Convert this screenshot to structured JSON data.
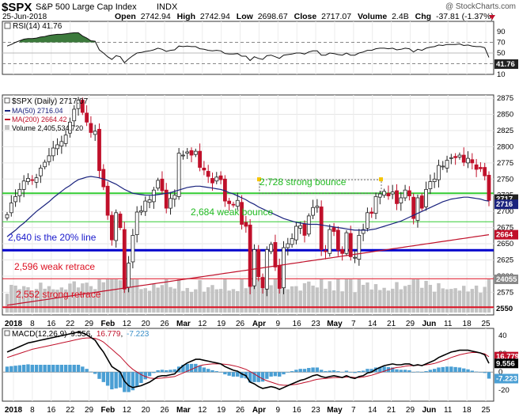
{
  "header": {
    "symbol": "$SPX",
    "name": "S&P 500 Large Cap Index",
    "exchange": "INDX",
    "watermark": "@ StockCharts.com",
    "date": "25-Jun-2018",
    "open_label": "Open",
    "open": "2742.94",
    "high_label": "High",
    "high": "2742.94",
    "low_label": "Low",
    "low": "2698.67",
    "close_label": "Close",
    "close": "2717.07",
    "volume_label": "Volume",
    "volume": "2.4B",
    "chg_label": "Chg",
    "chg": "-37.81 (-1.37%)"
  },
  "colors": {
    "up": "#222222",
    "down": "#c0102a",
    "ma50": "#1a237e",
    "ma200": "#c0102a",
    "volume": "#c3c3c3",
    "green_line": "#33cc33",
    "blue_line": "#0000cc",
    "red_line": "#dd1122",
    "panel_bg": "#f4f4f4"
  },
  "rsi_panel": {
    "legend": "RSI(14) 41.76",
    "ticks": [
      "90",
      "70",
      "50",
      "30",
      "10"
    ],
    "value_badge": "41.76"
  },
  "price_panel": {
    "legend_title": "$SPX (Daily) 2717.07",
    "legend_ma50": "MA(50) 2716.04",
    "legend_ma200": "MA(200) 2664.42",
    "legend_volume": "Volume 2,405,534,720",
    "ticks": [
      "2875",
      "2850",
      "2825",
      "2800",
      "2775",
      "2750",
      "2725",
      "2700",
      "2675",
      "2650",
      "2625",
      "2600",
      "2575",
      "2550"
    ],
    "badges": [
      "2717",
      "2716",
      "2664",
      "24055",
      "2550"
    ],
    "annotations": [
      "2,728 strong bounce",
      "2,684 weak bounce",
      "2,640 is the 20% line",
      "2,596 weak retrace",
      "2,552 strong retrace"
    ]
  },
  "macd_panel": {
    "legend_name": "MACD(12,26,9)",
    "legend_macd": "9.556",
    "legend_signal": "16.779",
    "legend_hist": "-7.223",
    "ticks": [
      "40",
      "20",
      "0",
      "-20"
    ],
    "badges": [
      "16.779",
      "9.556",
      "-7.223"
    ]
  },
  "x_axis_labels": [
    "2018",
    "8",
    "16",
    "22",
    "29",
    "Feb",
    "12",
    "20",
    "26",
    "Mar",
    "12",
    "19",
    "26",
    "Apr",
    "9",
    "16",
    "23",
    "May",
    "7",
    "14",
    "21",
    "29",
    "Jun",
    "11",
    "18",
    "25"
  ],
  "chart_data": {
    "type": "candlestick",
    "title": "$SPX (Daily) 2717.07",
    "ylim": [
      2540,
      2880
    ],
    "levels": [
      2728,
      2684,
      2640,
      2596,
      2552
    ],
    "close_series": [
      2695,
      2713,
      2723,
      2734,
      2747,
      2751,
      2748,
      2752,
      2767,
      2776,
      2786,
      2798,
      2803,
      2808,
      2818,
      2838,
      2858,
      2872,
      2853,
      2838,
      2822,
      2824,
      2763,
      2738,
      2694,
      2656,
      2698,
      2675,
      2580,
      2620,
      2663,
      2699,
      2701,
      2716,
      2718,
      2733,
      2748,
      2732,
      2705,
      2720,
      2725,
      2790,
      2787,
      2792,
      2787,
      2793,
      2768,
      2764,
      2754,
      2744,
      2753,
      2749,
      2716,
      2712,
      2710,
      2717,
      2680,
      2677,
      2584,
      2641,
      2599,
      2582,
      2641,
      2649,
      2614,
      2581,
      2644,
      2650,
      2658,
      2677,
      2678,
      2663,
      2693,
      2706,
      2708,
      2641,
      2638,
      2672,
      2669,
      2640,
      2635,
      2667,
      2630,
      2629,
      2663,
      2672,
      2698,
      2697,
      2723,
      2727,
      2731,
      2724,
      2730,
      2712,
      2721,
      2733,
      2724,
      2689,
      2721,
      2705,
      2734,
      2746,
      2750,
      2771,
      2770,
      2779,
      2783,
      2783,
      2787,
      2776,
      2782,
      2775,
      2765,
      2766,
      2755,
      2717
    ],
    "ma50_series": [
      2661,
      2666,
      2671,
      2677,
      2682,
      2688,
      2694,
      2700,
      2705,
      2710,
      2715,
      2721,
      2726,
      2731,
      2736,
      2740,
      2745,
      2749,
      2751,
      2753,
      2754,
      2753,
      2752,
      2750,
      2748,
      2745,
      2742,
      2738,
      2734,
      2731,
      2728,
      2727,
      2726,
      2725,
      2725,
      2725,
      2726,
      2727,
      2728,
      2729,
      2731,
      2733,
      2735,
      2737,
      2738,
      2739,
      2739,
      2738,
      2737,
      2736,
      2735,
      2734,
      2732,
      2729,
      2727,
      2724,
      2721,
      2718,
      2714,
      2711,
      2707,
      2704,
      2701,
      2698,
      2695,
      2692,
      2689,
      2687,
      2685,
      2683,
      2682,
      2681,
      2680,
      2680,
      2680,
      2679,
      2678,
      2677,
      2676,
      2675,
      2674,
      2673,
      2672,
      2671,
      2671,
      2671,
      2671,
      2672,
      2673,
      2675,
      2677,
      2679,
      2681,
      2683,
      2685,
      2688,
      2691,
      2694,
      2697,
      2700,
      2703,
      2706,
      2709,
      2712,
      2715,
      2717,
      2719,
      2720,
      2721,
      2722,
      2722,
      2721,
      2720,
      2719,
      2717,
      2716
    ],
    "ma200_series_start": 2555,
    "ma200_series_end": 2664,
    "volume_note": "Volume bars shown behind price",
    "rsi_series": [
      63,
      66,
      70,
      73,
      76,
      77,
      77,
      78,
      80,
      81,
      83,
      84,
      85,
      85,
      86,
      87,
      88,
      88,
      82,
      78,
      73,
      72,
      56,
      50,
      43,
      38,
      45,
      43,
      32,
      39,
      45,
      50,
      51,
      53,
      54,
      56,
      59,
      57,
      53,
      55,
      56,
      63,
      62,
      63,
      62,
      62,
      58,
      57,
      55,
      54,
      55,
      54,
      49,
      48,
      48,
      49,
      44,
      44,
      36,
      43,
      40,
      38,
      45,
      46,
      43,
      40,
      46,
      47,
      48,
      50,
      50,
      48,
      52,
      54,
      54,
      46,
      46,
      50,
      49,
      47,
      46,
      50,
      46,
      46,
      50,
      52,
      55,
      55,
      58,
      59,
      59,
      58,
      59,
      56,
      57,
      59,
      58,
      52,
      57,
      55,
      59,
      61,
      62,
      65,
      64,
      66,
      66,
      66,
      67,
      64,
      65,
      63,
      62,
      62,
      60,
      41.76
    ],
    "macd_series": [
      22,
      24,
      26,
      28,
      30,
      32,
      33,
      34,
      35,
      36,
      37,
      38,
      39,
      40,
      41,
      42,
      43,
      44,
      43,
      41,
      38,
      35,
      28,
      22,
      14,
      6,
      3,
      0,
      -10,
      -15,
      -17,
      -16,
      -15,
      -13,
      -11,
      -8,
      -5,
      -4,
      -4,
      -3,
      -2,
      3,
      7,
      10,
      12,
      14,
      14,
      13,
      12,
      11,
      10,
      9,
      6,
      4,
      2,
      1,
      -2,
      -4,
      -11,
      -13,
      -16,
      -18,
      -17,
      -16,
      -17,
      -19,
      -17,
      -15,
      -13,
      -11,
      -9,
      -8,
      -6,
      -4,
      -3,
      -5,
      -6,
      -5,
      -4,
      -5,
      -6,
      -4,
      -6,
      -7,
      -5,
      -4,
      -1,
      0,
      3,
      5,
      7,
      8,
      9,
      8,
      8,
      9,
      9,
      7,
      8,
      7,
      9,
      11,
      13,
      16,
      18,
      20,
      22,
      23,
      24,
      24,
      24,
      23,
      22,
      21,
      19,
      9.556
    ],
    "signal_series": [
      16,
      17.5,
      19,
      20.5,
      22,
      23.5,
      25,
      26,
      27,
      28,
      29,
      30,
      31,
      32,
      33,
      34,
      35,
      36,
      37,
      37.5,
      37.5,
      37,
      35.5,
      33,
      29,
      25,
      21,
      17,
      12,
      7,
      3,
      0,
      -3,
      -5,
      -6.5,
      -7,
      -7,
      -6.5,
      -6,
      -5.5,
      -5,
      -3,
      -1,
      1,
      3,
      5,
      7,
      8,
      8.5,
      9,
      9,
      9,
      8.5,
      8,
      7,
      6,
      4.5,
      3,
      0.5,
      -2,
      -5,
      -7.5,
      -9.5,
      -11,
      -12.5,
      -14,
      -14.5,
      -14.5,
      -14,
      -13.5,
      -12.5,
      -11.5,
      -10.5,
      -9,
      -8,
      -7.5,
      -7,
      -6.5,
      -6,
      -6,
      -6,
      -5.5,
      -5.5,
      -6,
      -6,
      -5.5,
      -4.5,
      -3.5,
      -2,
      -0.5,
      1,
      2.5,
      4,
      5,
      5.5,
      6.5,
      7,
      7,
      7.5,
      7.5,
      8,
      8.5,
      9.5,
      11,
      12.5,
      14,
      16,
      17.5,
      19,
      20,
      21,
      21.5,
      21.5,
      21,
      20,
      16.779
    ]
  }
}
